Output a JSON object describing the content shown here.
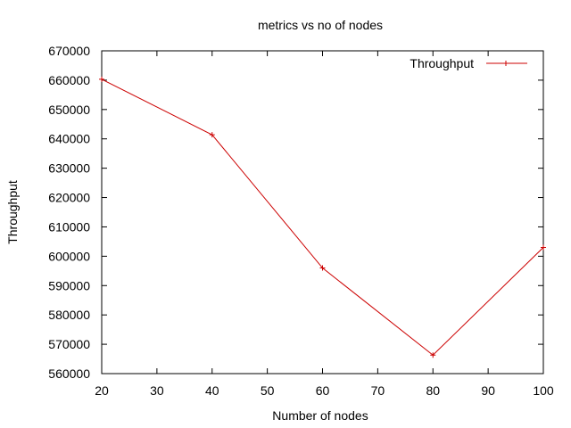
{
  "chart_data": {
    "type": "line",
    "title": "metrics vs no of nodes",
    "xlabel": "Number of nodes",
    "ylabel": "Throughput",
    "xlim": [
      20,
      100
    ],
    "ylim": [
      560000,
      670000
    ],
    "xticks": [
      "20",
      "30",
      "40",
      "50",
      "60",
      "70",
      "80",
      "90",
      "100"
    ],
    "yticks": [
      "560000",
      "570000",
      "580000",
      "590000",
      "600000",
      "610000",
      "620000",
      "630000",
      "640000",
      "650000",
      "660000",
      "670000"
    ],
    "grid": false,
    "legend_position": "top-right",
    "series": [
      {
        "name": "Throughput",
        "color": "#cc0000",
        "marker": "plus",
        "x": [
          20,
          40,
          60,
          80,
          100
        ],
        "y": [
          660300,
          641400,
          596000,
          566300,
          603000
        ]
      }
    ]
  }
}
